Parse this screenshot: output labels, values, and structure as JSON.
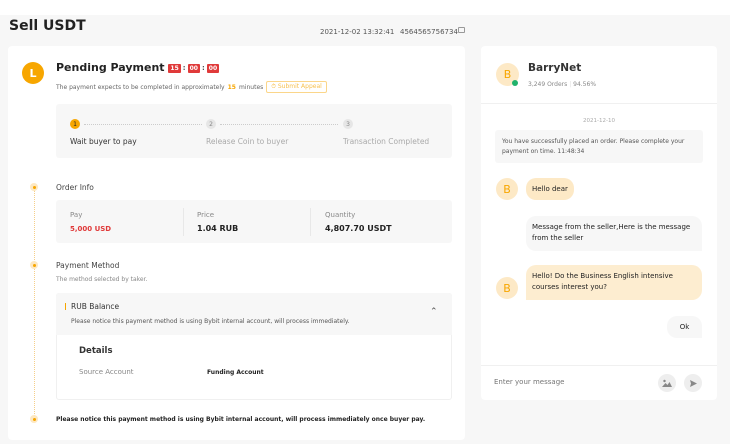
{
  "page": {
    "title": "Sell USDT",
    "timestamp": "2021-12-02 13:32:41",
    "order_id": "4564565756734"
  },
  "status": {
    "avatar_letter": "L",
    "title": "Pending Payment",
    "timer": [
      "15",
      "00",
      "00"
    ],
    "subtitle_pre": "The payment expects to be completed in approximately",
    "minutes": "15",
    "subtitle_post": "minutes",
    "appeal_label": "Submit Appeal"
  },
  "steps": [
    {
      "num": "1",
      "label": "Wait buyer to pay"
    },
    {
      "num": "2",
      "label": "Release Coin to buyer"
    },
    {
      "num": "3",
      "label": "Transaction Completed"
    }
  ],
  "order_info": {
    "heading": "Order Info",
    "pay_label": "Pay",
    "pay_value": "5,000 USD",
    "price_label": "Price",
    "price_value": "1.04 RUB",
    "qty_label": "Quantity",
    "qty_value": "4,807.70 USDT"
  },
  "payment": {
    "heading": "Payment Method",
    "subtitle": "The method selected by taker.",
    "method": "RUB Balance",
    "method_note": "Please notice this payment method is using Bybit internal account, will process immediately.",
    "details_title": "Details",
    "source_label": "Source Account",
    "source_value": "Funding Account"
  },
  "footer_note": "Please notice this payment method is using Bybit internal account, will process immediately once buyer pay.",
  "chat": {
    "name": "BarryNet",
    "avatar_letter": "B",
    "orders": "3,249 Orders",
    "rate": "94.56%",
    "date": "2021-12-10",
    "system": "You have successfully placed an order. Please complete your payment on time. 11:48:34",
    "msg1": "Hello dear",
    "msg2": "Message from the seller,Here is the message from the seller",
    "msg3": "Hello! Do the Business English intensive courses interest you?",
    "msg4": "Ok",
    "placeholder": "Enter your message"
  },
  "colors": {
    "accent": "#f7a600",
    "danger": "#e03a3a",
    "online": "#20b26c"
  }
}
